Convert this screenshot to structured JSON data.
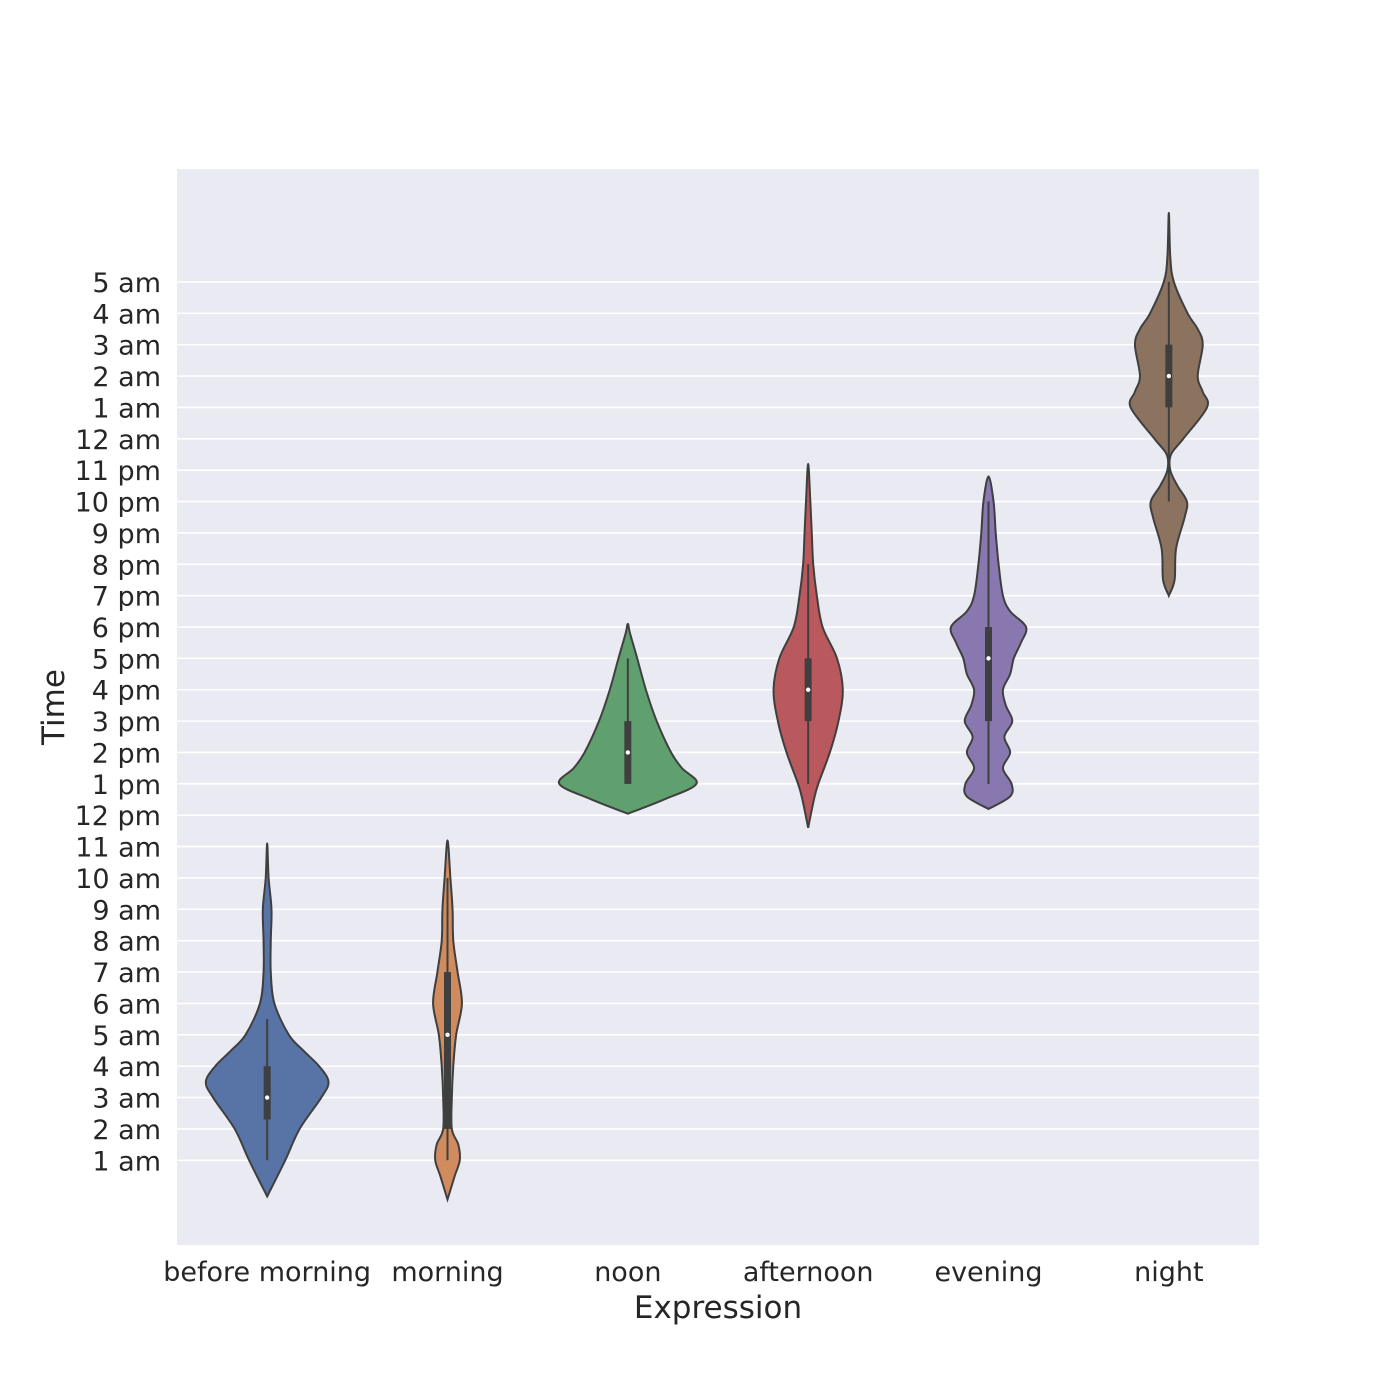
{
  "chart_data": {
    "type": "violin",
    "title": "",
    "xlabel": "Expression",
    "ylabel": "Time",
    "grid": true,
    "background": "#eaeaf2",
    "y_ticks": [
      {
        "value": 1,
        "label": "1 am"
      },
      {
        "value": 2,
        "label": "2 am"
      },
      {
        "value": 3,
        "label": "3 am"
      },
      {
        "value": 4,
        "label": "4 am"
      },
      {
        "value": 5,
        "label": "5 am"
      },
      {
        "value": 6,
        "label": "6 am"
      },
      {
        "value": 7,
        "label": "7 am"
      },
      {
        "value": 8,
        "label": "8 am"
      },
      {
        "value": 9,
        "label": "9 am"
      },
      {
        "value": 10,
        "label": "10 am"
      },
      {
        "value": 11,
        "label": "11 am"
      },
      {
        "value": 12,
        "label": "12 pm"
      },
      {
        "value": 13,
        "label": "1 pm"
      },
      {
        "value": 14,
        "label": "2 pm"
      },
      {
        "value": 15,
        "label": "3 pm"
      },
      {
        "value": 16,
        "label": "4 pm"
      },
      {
        "value": 17,
        "label": "5 pm"
      },
      {
        "value": 18,
        "label": "6 pm"
      },
      {
        "value": 19,
        "label": "7 pm"
      },
      {
        "value": 20,
        "label": "8 pm"
      },
      {
        "value": 21,
        "label": "9 pm"
      },
      {
        "value": 22,
        "label": "10 pm"
      },
      {
        "value": 23,
        "label": "11 pm"
      },
      {
        "value": 24,
        "label": "12 am"
      },
      {
        "value": 25,
        "label": "1 am"
      },
      {
        "value": 26,
        "label": "2 am"
      },
      {
        "value": 27,
        "label": "3 am"
      },
      {
        "value": 28,
        "label": "4 am"
      },
      {
        "value": 29,
        "label": "5 am"
      }
    ],
    "ylim": [
      -1.7,
      32.6
    ],
    "categories": [
      {
        "name": "before morning",
        "color": "#5874a7",
        "whisker": [
          1,
          5.5
        ],
        "quartiles": [
          2.3,
          4
        ],
        "median": 3,
        "profile": [
          [
            -0.15,
            0
          ],
          [
            1,
            0.25
          ],
          [
            2,
            0.45
          ],
          [
            3,
            0.75
          ],
          [
            3.5,
            0.85
          ],
          [
            4,
            0.72
          ],
          [
            4.5,
            0.5
          ],
          [
            5,
            0.3
          ],
          [
            6,
            0.1
          ],
          [
            7,
            0.05
          ],
          [
            8,
            0.05
          ],
          [
            9,
            0.06
          ],
          [
            10,
            0.02
          ],
          [
            11.1,
            0
          ]
        ]
      },
      {
        "name": "morning",
        "color": "#d08b5e",
        "whisker": [
          1,
          10
        ],
        "quartiles": [
          2,
          7
        ],
        "median": 5,
        "profile": [
          [
            -0.25,
            0
          ],
          [
            0.5,
            0.1
          ],
          [
            1,
            0.17
          ],
          [
            1.5,
            0.15
          ],
          [
            2,
            0.06
          ],
          [
            3,
            0.06
          ],
          [
            4,
            0.08
          ],
          [
            5,
            0.12
          ],
          [
            6,
            0.2
          ],
          [
            7,
            0.14
          ],
          [
            8,
            0.08
          ],
          [
            9,
            0.07
          ],
          [
            10,
            0.04
          ],
          [
            11.2,
            0
          ]
        ]
      },
      {
        "name": "noon",
        "color": "#60a06f",
        "whisker": [
          13,
          17
        ],
        "quartiles": [
          13,
          15
        ],
        "median": 14,
        "profile": [
          [
            12.05,
            0
          ],
          [
            12.5,
            0.5
          ],
          [
            13,
            0.95
          ],
          [
            13.5,
            0.75
          ],
          [
            14,
            0.6
          ],
          [
            15,
            0.4
          ],
          [
            16,
            0.25
          ],
          [
            17,
            0.13
          ],
          [
            17.8,
            0.03
          ],
          [
            18.1,
            0
          ]
        ]
      },
      {
        "name": "afternoon",
        "color": "#b9585d",
        "whisker": [
          13,
          20
        ],
        "quartiles": [
          15,
          17
        ],
        "median": 16,
        "profile": [
          [
            11.6,
            0
          ],
          [
            12.5,
            0.08
          ],
          [
            13,
            0.14
          ],
          [
            14,
            0.3
          ],
          [
            15,
            0.42
          ],
          [
            16,
            0.48
          ],
          [
            17,
            0.4
          ],
          [
            18,
            0.2
          ],
          [
            19,
            0.12
          ],
          [
            20,
            0.07
          ],
          [
            21,
            0.05
          ],
          [
            22,
            0.03
          ],
          [
            23.2,
            0
          ]
        ]
      },
      {
        "name": "evening",
        "color": "#8978b0",
        "whisker": [
          13,
          22
        ],
        "quartiles": [
          15,
          18
        ],
        "median": 17,
        "profile": [
          [
            12.2,
            0
          ],
          [
            12.6,
            0.3
          ],
          [
            13,
            0.32
          ],
          [
            13.5,
            0.2
          ],
          [
            14,
            0.3
          ],
          [
            14.5,
            0.22
          ],
          [
            15,
            0.33
          ],
          [
            15.5,
            0.24
          ],
          [
            16,
            0.2
          ],
          [
            16.5,
            0.3
          ],
          [
            17,
            0.35
          ],
          [
            17.5,
            0.45
          ],
          [
            18,
            0.52
          ],
          [
            18.5,
            0.3
          ],
          [
            19,
            0.2
          ],
          [
            20,
            0.14
          ],
          [
            21,
            0.1
          ],
          [
            22,
            0.07
          ],
          [
            22.8,
            0
          ]
        ]
      },
      {
        "name": "night",
        "color": "#8b735f",
        "whisker": [
          22,
          29
        ],
        "quartiles": [
          25,
          27
        ],
        "median": 26,
        "profile": [
          [
            19,
            0
          ],
          [
            19.5,
            0.08
          ],
          [
            20.5,
            0.1
          ],
          [
            21.5,
            0.22
          ],
          [
            22,
            0.25
          ],
          [
            22.5,
            0.12
          ],
          [
            23,
            0.02
          ],
          [
            23.5,
            0.03
          ],
          [
            24,
            0.2
          ],
          [
            25,
            0.53
          ],
          [
            25.5,
            0.47
          ],
          [
            26,
            0.4
          ],
          [
            27,
            0.47
          ],
          [
            27.5,
            0.4
          ],
          [
            28,
            0.26
          ],
          [
            29,
            0.07
          ],
          [
            29.8,
            0.02
          ],
          [
            31.2,
            0
          ]
        ]
      }
    ]
  }
}
